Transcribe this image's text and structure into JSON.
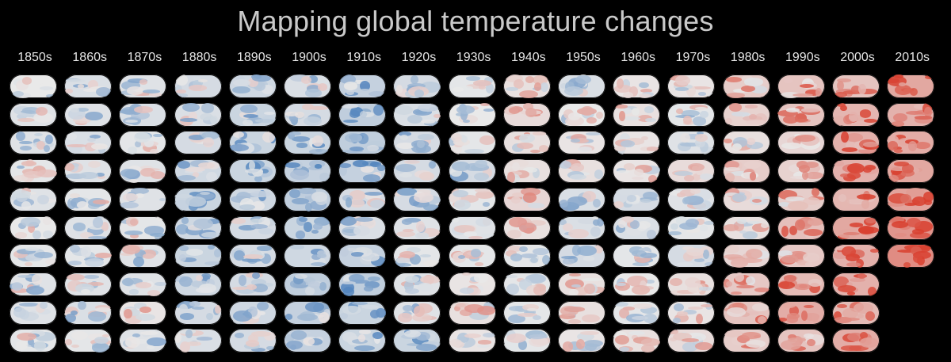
{
  "title": "Mapping global temperature changes",
  "chart_data": {
    "type": "heatmap",
    "title": "Mapping global temperature changes",
    "description_units": "anomaly level: -1 (strong cool/blue) .. 0 (neutral/gray) .. +1 (strong warm/red)",
    "colors": {
      "cool": "#2f6db3",
      "neutral": "#e9e9e9",
      "warm": "#d8402f",
      "background": "#000000",
      "title": "#c9c9c9",
      "label": "#e6e6e6"
    },
    "decades": [
      {
        "label": "1850s",
        "years": 10,
        "anomalies": [
          0.0,
          -0.1,
          -0.1,
          -0.05,
          -0.1,
          0.0,
          -0.05,
          -0.1,
          -0.1,
          -0.05
        ]
      },
      {
        "label": "1860s",
        "years": 10,
        "anomalies": [
          -0.15,
          -0.1,
          -0.15,
          -0.1,
          -0.05,
          -0.1,
          -0.05,
          -0.1,
          -0.15,
          -0.05
        ]
      },
      {
        "label": "1870s",
        "years": 10,
        "anomalies": [
          -0.1,
          -0.15,
          -0.05,
          -0.1,
          -0.1,
          -0.05,
          -0.1,
          -0.1,
          0.05,
          -0.1
        ]
      },
      {
        "label": "1880s",
        "years": 10,
        "anomalies": [
          -0.2,
          -0.15,
          -0.2,
          -0.25,
          -0.3,
          -0.25,
          -0.3,
          -0.25,
          -0.2,
          -0.15
        ]
      },
      {
        "label": "1890s",
        "years": 10,
        "anomalies": [
          -0.25,
          -0.3,
          -0.3,
          -0.3,
          -0.25,
          -0.2,
          -0.2,
          -0.2,
          -0.25,
          -0.2
        ]
      },
      {
        "label": "1900s",
        "years": 10,
        "anomalies": [
          -0.15,
          -0.2,
          -0.3,
          -0.35,
          -0.4,
          -0.3,
          -0.25,
          -0.4,
          -0.35,
          -0.35
        ]
      },
      {
        "label": "1910s",
        "years": 10,
        "anomalies": [
          -0.35,
          -0.4,
          -0.4,
          -0.35,
          -0.2,
          -0.15,
          -0.35,
          -0.4,
          -0.3,
          -0.3
        ]
      },
      {
        "label": "1920s",
        "years": 10,
        "anomalies": [
          -0.2,
          -0.15,
          -0.2,
          -0.2,
          -0.2,
          -0.1,
          -0.05,
          -0.1,
          -0.1,
          -0.3
        ]
      },
      {
        "label": "1930s",
        "years": 10,
        "anomalies": [
          -0.05,
          0.0,
          -0.05,
          -0.2,
          -0.05,
          -0.1,
          -0.05,
          0.05,
          0.1,
          0.05
        ]
      },
      {
        "label": "1940s",
        "years": 10,
        "anomalies": [
          0.1,
          0.15,
          0.1,
          0.1,
          0.2,
          0.1,
          -0.05,
          -0.05,
          -0.05,
          -0.05
        ]
      },
      {
        "label": "1950s",
        "years": 10,
        "anomalies": [
          -0.15,
          0.0,
          0.05,
          0.1,
          -0.15,
          -0.15,
          -0.2,
          0.1,
          0.1,
          0.05
        ]
      },
      {
        "label": "1960s",
        "years": 10,
        "anomalies": [
          0.05,
          0.1,
          0.05,
          0.05,
          -0.2,
          -0.15,
          -0.05,
          0.0,
          -0.05,
          0.1
        ]
      },
      {
        "label": "1970s",
        "years": 10,
        "anomalies": [
          0.05,
          -0.05,
          -0.1,
          0.15,
          -0.1,
          -0.05,
          -0.2,
          0.1,
          0.05,
          0.15
        ]
      },
      {
        "label": "1980s",
        "years": 10,
        "anomalies": [
          0.3,
          0.25,
          0.1,
          0.3,
          0.15,
          0.1,
          0.2,
          0.35,
          0.4,
          0.3
        ]
      },
      {
        "label": "1990s",
        "years": 10,
        "anomalies": [
          0.4,
          0.4,
          0.2,
          0.25,
          0.3,
          0.45,
          0.35,
          0.5,
          0.65,
          0.4
        ]
      },
      {
        "label": "2000s",
        "years": 10,
        "anomalies": [
          0.4,
          0.55,
          0.6,
          0.6,
          0.55,
          0.7,
          0.6,
          0.6,
          0.5,
          0.65
        ]
      },
      {
        "label": "2010s",
        "years": 7,
        "anomalies": [
          0.7,
          0.6,
          0.65,
          0.7,
          0.75,
          0.9,
          1.0
        ]
      }
    ]
  }
}
